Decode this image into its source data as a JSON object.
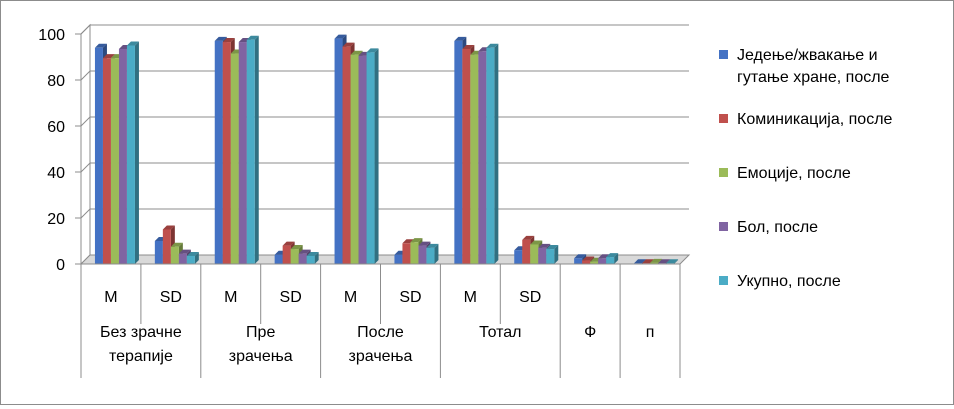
{
  "chart_data": {
    "type": "bar",
    "style": "3d-clustered-column",
    "ylim": [
      0,
      100
    ],
    "yticks": [
      0,
      20,
      40,
      60,
      80,
      100
    ],
    "grid": true,
    "legend_position": "right",
    "categories": [
      {
        "label": "M",
        "group": 0
      },
      {
        "label": "SD",
        "group": 0
      },
      {
        "label": "M",
        "group": 1
      },
      {
        "label": "SD",
        "group": 1
      },
      {
        "label": "M",
        "group": 2
      },
      {
        "label": "SD",
        "group": 2
      },
      {
        "label": "M",
        "group": 3
      },
      {
        "label": "SD",
        "group": 3
      },
      {
        "label": "",
        "group": 4
      },
      {
        "label": "",
        "group": 5
      }
    ],
    "groups": [
      {
        "lines": [
          "Без зрачне",
          "терапије"
        ],
        "span": 2
      },
      {
        "lines": [
          "Пре",
          "зрачења"
        ],
        "span": 2
      },
      {
        "lines": [
          "После",
          "зрачења"
        ],
        "span": 2
      },
      {
        "lines": [
          "Тотал"
        ],
        "span": 2
      },
      {
        "lines": [
          "Ф"
        ],
        "span": 1
      },
      {
        "lines": [
          "п"
        ],
        "span": 1
      }
    ],
    "series": [
      {
        "name_lines": [
          "Једење/жвакање и",
          "гутање хране, после"
        ],
        "color": "#4472C4",
        "values": [
          94,
          10,
          97,
          4,
          98,
          4,
          97,
          6,
          2.5,
          0.3
        ]
      },
      {
        "name_lines": [
          "Коминикација, после"
        ],
        "color": "#C0504D",
        "values": [
          89.5,
          15,
          96.5,
          8,
          94.5,
          9,
          93.5,
          10.5,
          1.5,
          0.3
        ]
      },
      {
        "name_lines": [
          "Емоције, после"
        ],
        "color": "#9BBB59",
        "values": [
          89.5,
          7.5,
          91.5,
          6.5,
          91,
          9.5,
          91,
          8.5,
          1,
          0.5
        ]
      },
      {
        "name_lines": [
          "Бол, после"
        ],
        "color": "#8064A2",
        "values": [
          93.5,
          4.5,
          96.5,
          4.5,
          90.5,
          8,
          92.5,
          7,
          2.5,
          0.3
        ]
      },
      {
        "name_lines": [
          "Укупно, после"
        ],
        "color": "#4BACC6",
        "values": [
          95,
          3.5,
          97.5,
          3.5,
          92,
          7,
          94,
          6.5,
          3,
          0.3
        ]
      }
    ]
  }
}
